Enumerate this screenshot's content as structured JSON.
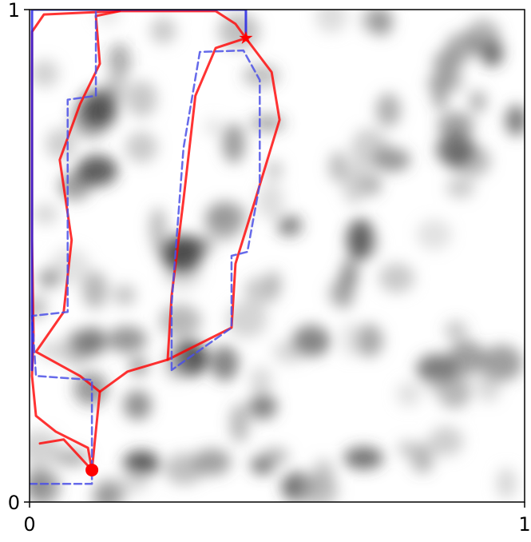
{
  "chart_data": {
    "type": "line",
    "xlim": [
      0,
      1
    ],
    "ylim": [
      0,
      1
    ],
    "xticks": [
      0,
      1
    ],
    "yticks": [
      0,
      1
    ],
    "series": [
      {
        "color": "#ff0000",
        "linestyle": "solid",
        "x": [
          0.126,
          0.118,
          0.053,
          0.013,
          0.005,
          0.008,
          0.005,
          0.005,
          0.005,
          0.029,
          0.182,
          0.376,
          0.416,
          0.437
        ],
        "values": [
          0.065,
          0.11,
          0.143,
          0.175,
          0.256,
          0.338,
          0.532,
          0.776,
          0.955,
          0.99,
          0.997,
          0.997,
          0.971,
          0.942
        ]
      },
      {
        "color": "#ff0000",
        "linestyle": "solid",
        "x": [
          0.126,
          0.142,
          0.102,
          0.013,
          0.069,
          0.085,
          0.061,
          0.102,
          0.142,
          0.134,
          0.182
        ],
        "values": [
          0.065,
          0.224,
          0.256,
          0.305,
          0.386,
          0.532,
          0.695,
          0.808,
          0.89,
          0.987,
          0.997
        ]
      },
      {
        "color": "#ff0000",
        "linestyle": "solid",
        "x": [
          0.142,
          0.198,
          0.279,
          0.408,
          0.416,
          0.456,
          0.505,
          0.489,
          0.437
        ],
        "values": [
          0.224,
          0.265,
          0.289,
          0.354,
          0.484,
          0.614,
          0.776,
          0.873,
          0.942
        ]
      },
      {
        "color": "#ff0000",
        "linestyle": "solid",
        "x": [
          0.279,
          0.287,
          0.311,
          0.335,
          0.376,
          0.437
        ],
        "values": [
          0.289,
          0.419,
          0.614,
          0.825,
          0.922,
          0.942
        ]
      },
      {
        "color": "#ff0000",
        "linestyle": "solid",
        "x": [
          0.126,
          0.069,
          0.021
        ],
        "values": [
          0.065,
          0.127,
          0.119
        ]
      },
      {
        "color": "#4b50e6",
        "linestyle": "dashed",
        "x": [
          0,
          0.126,
          0.126,
          0.013,
          0.005,
          0.077,
          0.077,
          0.134,
          0.134
        ],
        "values": [
          0.037,
          0.037,
          0.248,
          0.256,
          0.378,
          0.386,
          0.817,
          0.825,
          0.995
        ]
      },
      {
        "color": "#4b50e6",
        "linestyle": "dashed",
        "x": [
          0.287,
          0.287,
          0.311,
          0.344,
          0.432,
          0.465,
          0.465,
          0.44,
          0.408,
          0.408,
          0.287
        ],
        "values": [
          0.268,
          0.403,
          0.719,
          0.914,
          0.917,
          0.857,
          0.646,
          0.508,
          0.5,
          0.354,
          0.268
        ]
      },
      {
        "color": "#1a1ae6",
        "linestyle": "solid",
        "x": [
          0.005,
          0.005,
          0.437,
          0.437
        ],
        "values": [
          0.268,
          1,
          1,
          0.942
        ]
      }
    ],
    "markers": [
      {
        "shape": "circle",
        "color": "#ff0000",
        "x": 0.126,
        "y": 0.065
      },
      {
        "shape": "star",
        "color": "#ff0000",
        "x": 0.437,
        "y": 0.942
      }
    ]
  }
}
